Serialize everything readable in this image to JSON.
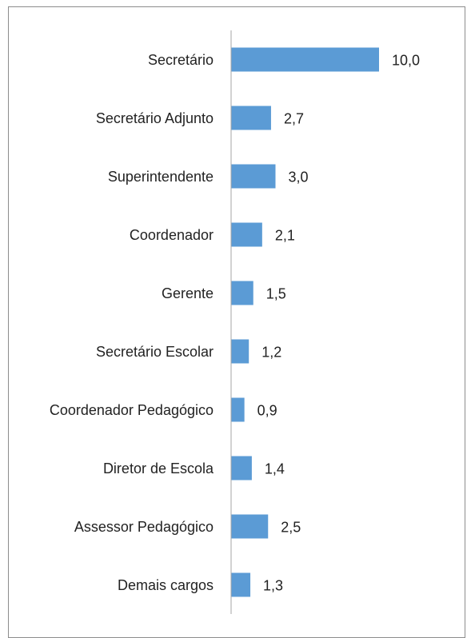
{
  "chart_data": {
    "type": "barh",
    "categories": [
      "Secretário",
      "Secretário Adjunto",
      "Superintendente",
      "Coordenador",
      "Gerente",
      "Secretário Escolar",
      "Coordenador Pedagógico",
      "Diretor de Escola",
      "Assessor Pedagógico",
      "Demais cargos"
    ],
    "values": [
      10.0,
      2.7,
      3.0,
      2.1,
      1.5,
      1.2,
      0.9,
      1.4,
      2.5,
      1.3
    ],
    "value_labels": [
      "10,0",
      "2,7",
      "3,0",
      "2,1",
      "1,5",
      "1,2",
      "0,9",
      "1,4",
      "2,5",
      "1,3"
    ],
    "color": "#5b9bd5",
    "xlim": [
      0,
      10
    ]
  }
}
